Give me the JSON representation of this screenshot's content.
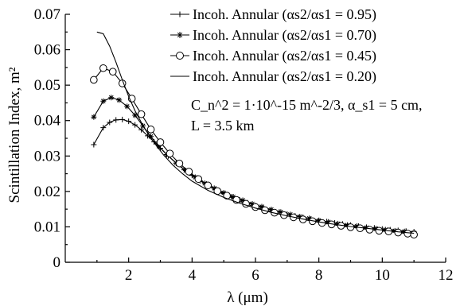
{
  "chart_data": {
    "type": "line",
    "xlabel": "λ (μm)",
    "ylabel": "Scintillation Index, m²",
    "xlim": [
      0,
      12
    ],
    "ylim": [
      0,
      0.07
    ],
    "xticks": [
      "2",
      "4",
      "6",
      "8",
      "10",
      "12"
    ],
    "xtick_values": [
      2,
      4,
      6,
      8,
      10,
      12
    ],
    "yticks": [
      "0",
      "0.01",
      "0.02",
      "0.03",
      "0.04",
      "0.05",
      "0.06",
      "0.07"
    ],
    "ytick_values": [
      0,
      0.01,
      0.02,
      0.03,
      0.04,
      0.05,
      0.06,
      0.07
    ],
    "legend_position": "top-right",
    "annotation": {
      "line1": "C_n^2 = 1·10^-15 m^-2/3, α_s1 = 5 cm,",
      "line2": "L = 3.5 km"
    },
    "series": [
      {
        "name": "Incoh. Annular (αs2/αs1 = 0.95)",
        "marker": "plus",
        "x": [
          0.9,
          1.2,
          1.4,
          1.6,
          1.8,
          2.0,
          2.2,
          2.4,
          2.6,
          2.8,
          3.0,
          3.25,
          3.5,
          3.75,
          4.0,
          4.25,
          4.5,
          4.75,
          5.0,
          5.25,
          5.5,
          5.75,
          6.0,
          6.25,
          6.5,
          6.75,
          7.0,
          7.25,
          7.5,
          7.75,
          8.0,
          8.25,
          8.5,
          8.75,
          9.0,
          9.25,
          9.5,
          9.75,
          10.0,
          10.25,
          10.5,
          10.75,
          11.0
        ],
        "y": [
          0.0332,
          0.038,
          0.0395,
          0.0402,
          0.0403,
          0.0398,
          0.0388,
          0.0374,
          0.0357,
          0.034,
          0.0322,
          0.03,
          0.028,
          0.0261,
          0.0245,
          0.023,
          0.0217,
          0.0205,
          0.0194,
          0.0185,
          0.0176,
          0.0168,
          0.016,
          0.0154,
          0.0148,
          0.0142,
          0.0136,
          0.0131,
          0.0127,
          0.0122,
          0.0118,
          0.0115,
          0.0111,
          0.0108,
          0.0105,
          0.0102,
          0.0099,
          0.0097,
          0.0094,
          0.0092,
          0.009,
          0.0088,
          0.0086
        ]
      },
      {
        "name": "Incoh. Annular (αs2/αs1 = 0.70)",
        "marker": "star",
        "x": [
          0.9,
          1.2,
          1.45,
          1.7,
          1.95,
          2.2,
          2.45,
          2.7,
          2.95,
          3.2,
          3.5,
          3.8,
          4.1,
          4.4,
          4.7,
          5.0,
          5.3,
          5.6,
          5.9,
          6.2,
          6.5,
          6.8,
          7.1,
          7.4,
          7.7,
          8.0,
          8.3,
          8.6,
          8.9,
          9.2,
          9.5,
          9.8,
          10.1,
          10.4,
          10.7,
          11.0
        ],
        "y": [
          0.041,
          0.0455,
          0.0465,
          0.0458,
          0.044,
          0.0415,
          0.0385,
          0.0355,
          0.0328,
          0.0304,
          0.028,
          0.0259,
          0.024,
          0.0223,
          0.0209,
          0.0196,
          0.0185,
          0.0175,
          0.0165,
          0.0157,
          0.0149,
          0.0142,
          0.0135,
          0.0129,
          0.0124,
          0.0118,
          0.0114,
          0.0109,
          0.0105,
          0.0102,
          0.0098,
          0.0095,
          0.0092,
          0.0089,
          0.0087,
          0.0084
        ]
      },
      {
        "name": "Incoh. Annular (αs2/αs1 = 0.45)",
        "marker": "circle",
        "x": [
          0.9,
          1.2,
          1.5,
          1.8,
          2.1,
          2.4,
          2.7,
          3.0,
          3.3,
          3.6,
          3.9,
          4.2,
          4.5,
          4.8,
          5.1,
          5.4,
          5.7,
          6.0,
          6.3,
          6.6,
          6.9,
          7.2,
          7.5,
          7.8,
          8.1,
          8.4,
          8.7,
          9.0,
          9.3,
          9.6,
          9.9,
          10.2,
          10.5,
          10.8,
          11.0
        ],
        "y": [
          0.0515,
          0.0548,
          0.0538,
          0.0505,
          0.0462,
          0.0418,
          0.0375,
          0.0339,
          0.0307,
          0.0279,
          0.0256,
          0.0235,
          0.0217,
          0.0201,
          0.0188,
          0.0176,
          0.0165,
          0.0156,
          0.0147,
          0.014,
          0.0133,
          0.0127,
          0.0121,
          0.0116,
          0.0111,
          0.0107,
          0.0103,
          0.0099,
          0.0096,
          0.0092,
          0.0089,
          0.0087,
          0.0084,
          0.0081,
          0.0078
        ]
      },
      {
        "name": "Incoh. Annular (αs2/αs1 = 0.20)",
        "marker": "none",
        "x": [
          1.0,
          1.2,
          1.4,
          1.6,
          1.8,
          2.0,
          2.2,
          2.5,
          2.8,
          3.1,
          3.4,
          3.7,
          4.0,
          4.5,
          5.0,
          5.5,
          6.0,
          6.5,
          7.0,
          7.5,
          8.0,
          8.5,
          9.0,
          9.5,
          10.0,
          10.5,
          11.0
        ],
        "y": [
          0.065,
          0.0645,
          0.061,
          0.0565,
          0.0515,
          0.0468,
          0.0428,
          0.0378,
          0.0338,
          0.0303,
          0.0274,
          0.025,
          0.0229,
          0.0203,
          0.0183,
          0.0167,
          0.0153,
          0.0141,
          0.0131,
          0.0122,
          0.0114,
          0.0107,
          0.0101,
          0.0096,
          0.0091,
          0.0086,
          0.0082
        ]
      }
    ]
  }
}
